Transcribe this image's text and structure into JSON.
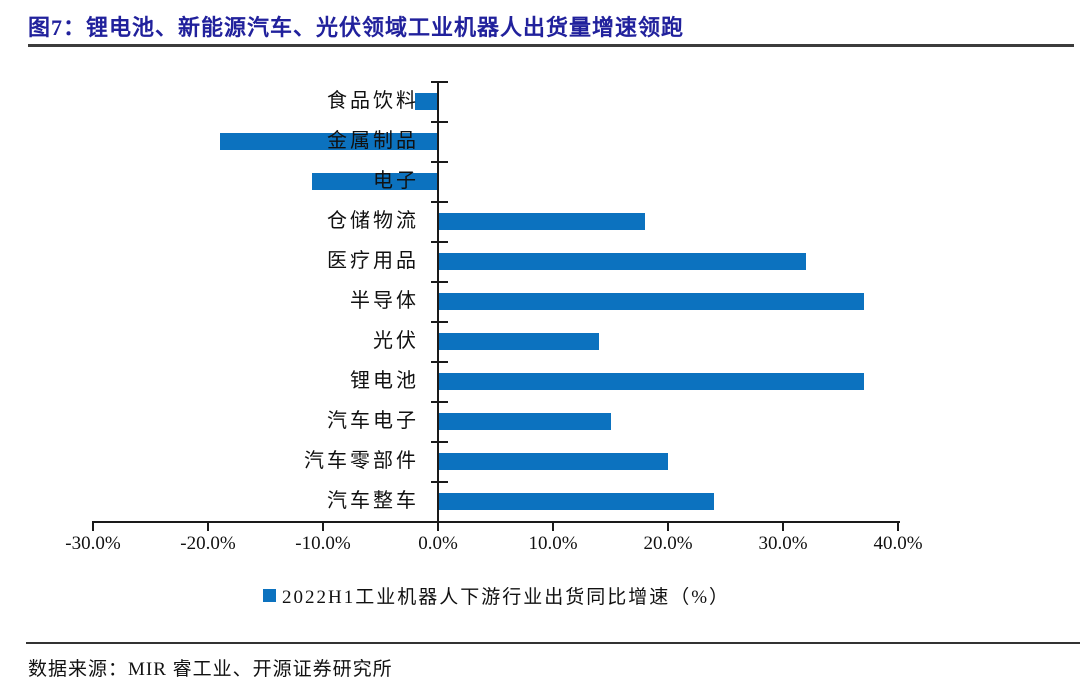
{
  "header": {
    "title": "图7：锂电池、新能源汽车、光伏领域工业机器人出货量增速领跑"
  },
  "chart_data": {
    "type": "bar",
    "orientation": "horizontal",
    "legend": "2022H1工业机器人下游行业出货同比增速（%）",
    "legend_position": "bottom-center",
    "categories": [
      "食品饮料",
      "金属制品",
      "电子",
      "仓储物流",
      "医疗用品",
      "半导体",
      "光伏",
      "锂电池",
      "汽车电子",
      "汽车零部件",
      "汽车整车"
    ],
    "values": [
      -2,
      -19,
      -11,
      18,
      32,
      37,
      14,
      37,
      15,
      20,
      24
    ],
    "unit": "%",
    "xlim": [
      -30,
      40
    ],
    "x_tick_step": 10,
    "x_ticks": [
      "-30.0%",
      "-20.0%",
      "-10.0%",
      "0.0%",
      "10.0%",
      "20.0%",
      "30.0%",
      "40.0%"
    ],
    "grid": false
  },
  "footer": {
    "source": "数据来源：MIR 睿工业、开源证券研究所"
  },
  "colors": {
    "bar": "#0c72bf",
    "title": "#21219c",
    "axis": "#1a1a1a"
  }
}
